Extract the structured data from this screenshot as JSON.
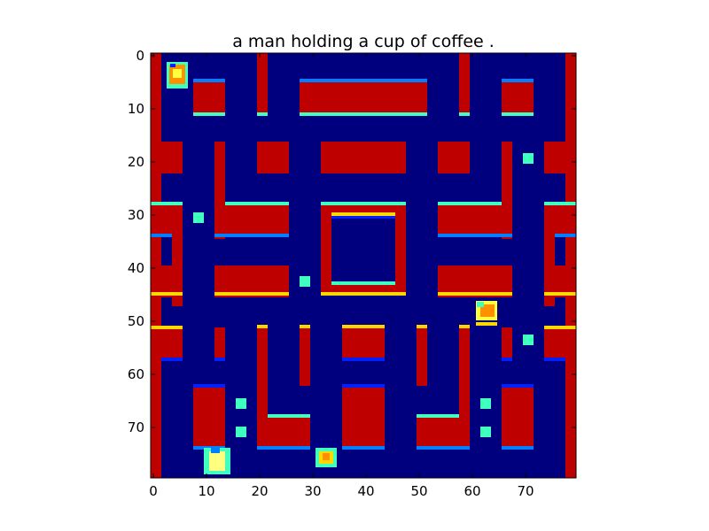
{
  "figure": {
    "title": "a man holding a cup of coffee ."
  },
  "axes": {
    "x_ticks": [
      "0",
      "10",
      "20",
      "30",
      "40",
      "50",
      "60",
      "70"
    ],
    "y_ticks": [
      "0",
      "10",
      "20",
      "30",
      "40",
      "50",
      "60",
      "70"
    ],
    "x_range": [
      0,
      80
    ],
    "y_range": [
      0,
      80
    ],
    "y_inverted": true
  },
  "colors": {
    "background": "#00007f",
    "wall": "#bf0000",
    "edge_cyan": "#40ffbf",
    "edge_yellow": "#ffd800",
    "edge_blue": "#0020ff",
    "sprite_orange": "#ff9000"
  }
}
